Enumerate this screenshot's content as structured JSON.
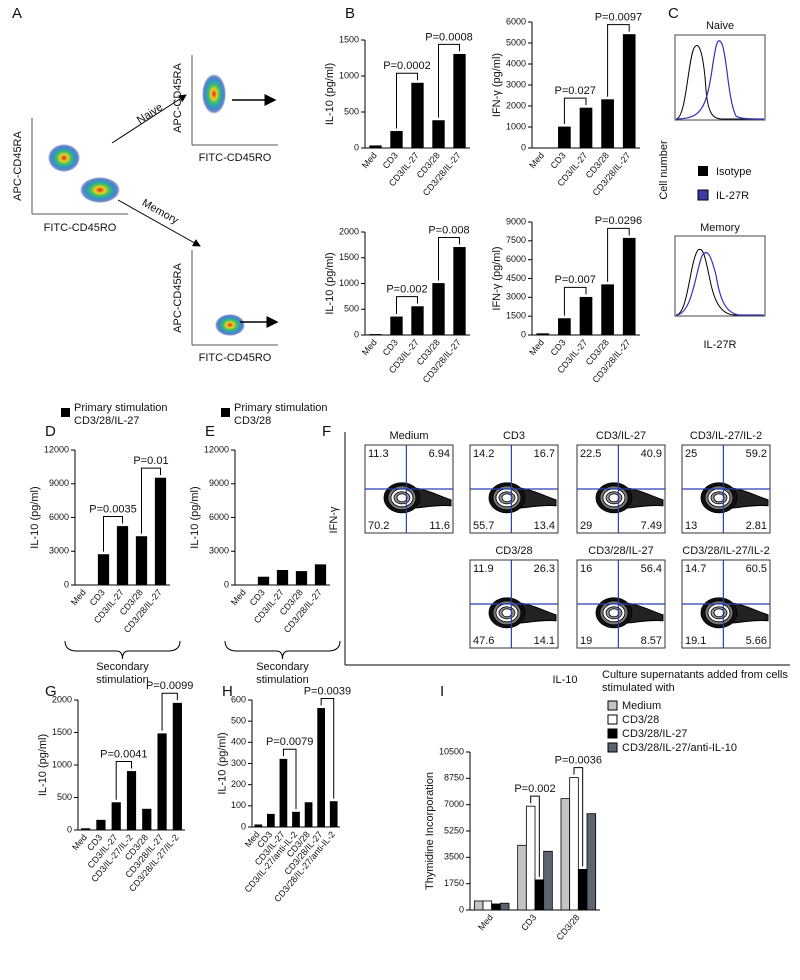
{
  "panel_labels": [
    "A",
    "B",
    "C",
    "D",
    "E",
    "F",
    "G",
    "H",
    "I"
  ],
  "panel_a": {
    "y_axis": "APC-CD45RA",
    "x_axis": "FITC-CD45RO",
    "naive": "Naive",
    "memory": "Memory"
  },
  "panel_c": {
    "y_axis": "Cell number",
    "x_axis": "IL-27R",
    "naive": "Naive",
    "memory": "Memory",
    "legend": [
      "Isotype",
      "IL-27R"
    ]
  },
  "panel_f": {
    "y_axis": "IFN-γ",
    "x_axis": "IL-10",
    "plots": [
      {
        "title": "Medium",
        "quadrants": [
          11.3,
          6.94,
          70.2,
          11.6
        ]
      },
      {
        "title": "CD3",
        "quadrants": [
          14.2,
          16.7,
          55.7,
          13.4
        ]
      },
      {
        "title": "CD3/IL-27",
        "quadrants": [
          22.5,
          40.9,
          29,
          7.49
        ]
      },
      {
        "title": "CD3/IL-27/IL-2",
        "quadrants": [
          25,
          59.2,
          13,
          2.81
        ]
      },
      {
        "title": "CD3/28",
        "quadrants": [
          11.9,
          26.3,
          47.6,
          14.1
        ]
      },
      {
        "title": "CD3/28/IL-27",
        "quadrants": [
          16,
          56.4,
          19,
          8.57
        ]
      },
      {
        "title": "CD3/28/IL-27/IL-2",
        "quadrants": [
          14.7,
          60.5,
          19.1,
          5.66
        ]
      }
    ]
  },
  "chart_data": [
    {
      "type": "bar",
      "y_label": "IL-10 (pg/ml)",
      "categories": [
        "Med",
        "CD3",
        "CD3/IL-27",
        "CD3/28",
        "CD3/28/IL-27"
      ],
      "values": [
        30,
        230,
        900,
        380,
        1300
      ],
      "color": "#000000",
      "ylim": [
        0,
        1500
      ],
      "yticks": [
        0,
        500,
        1000,
        1500
      ],
      "annotations": [
        {
          "text": "P=0.0002",
          "pair": [
            1,
            2
          ]
        },
        {
          "text": "P=0.0008",
          "pair": [
            3,
            4
          ]
        }
      ]
    },
    {
      "type": "bar",
      "y_label": "IFN-γ (pg/ml)",
      "categories": [
        "Med",
        "CD3",
        "CD3/IL-27",
        "CD3/28",
        "CD3/28/IL-27"
      ],
      "values": [
        0,
        1000,
        1900,
        2300,
        5400
      ],
      "color": "#000000",
      "ylim": [
        0,
        6000
      ],
      "yticks": [
        0,
        1000,
        2000,
        3000,
        4000,
        5000,
        6000
      ],
      "annotations": [
        {
          "text": "P=0.027",
          "pair": [
            1,
            2
          ]
        },
        {
          "text": "P=0.0097",
          "pair": [
            3,
            4
          ]
        }
      ]
    },
    {
      "type": "bar",
      "y_label": "IL-10 (pg/ml)",
      "categories": [
        "Med",
        "CD3",
        "CD3/IL-27",
        "CD3/28",
        "CD3/28/IL-27"
      ],
      "values": [
        10,
        350,
        550,
        1000,
        1700
      ],
      "color": "#000000",
      "ylim": [
        0,
        2000
      ],
      "yticks": [
        0,
        500,
        1000,
        1500,
        2000
      ],
      "annotations": [
        {
          "text": "P=0.002",
          "pair": [
            1,
            2
          ]
        },
        {
          "text": "P=0.008",
          "pair": [
            3,
            4
          ]
        }
      ]
    },
    {
      "type": "bar",
      "y_label": "IFN-γ (pg/ml)",
      "categories": [
        "Med",
        "CD3",
        "CD3/IL-27",
        "CD3/28",
        "CD3/28/IL-27"
      ],
      "values": [
        100,
        1300,
        3000,
        4000,
        7700
      ],
      "color": "#000000",
      "ylim": [
        0,
        9000
      ],
      "yticks": [
        0,
        1500,
        3000,
        4500,
        6000,
        7500,
        9000
      ],
      "annotations": [
        {
          "text": "P=0.007",
          "pair": [
            1,
            2
          ]
        },
        {
          "text": "P=0.0296",
          "pair": [
            3,
            4
          ]
        }
      ]
    },
    {
      "type": "bar",
      "y_label": "IL-10 (pg/ml)",
      "categories": [
        "Med",
        "CD3",
        "CD3/IL-27",
        "CD3/28",
        "CD3/28/IL-27"
      ],
      "series": [
        {
          "name": "Primary stimulation CD3/28/IL-27",
          "color": "#000000",
          "values": [
            0,
            2700,
            5200,
            4300,
            9500
          ]
        }
      ],
      "ylim": [
        0,
        12000
      ],
      "yticks": [
        0,
        3000,
        6000,
        9000,
        12000
      ],
      "annotations": [
        {
          "text": "P=0.0035",
          "pair": [
            1,
            2
          ]
        },
        {
          "text": "P=0.01",
          "pair": [
            3,
            4
          ]
        }
      ],
      "group_label": "Secondary stimulation"
    },
    {
      "type": "bar",
      "y_label": "IL-10 (pg/ml)",
      "categories": [
        "Med",
        "CD3",
        "CD3/IL-27",
        "CD3/28",
        "CD3/28/IL-27"
      ],
      "series": [
        {
          "name": "Primary stimulation CD3/28",
          "color": "#000000",
          "values": [
            0,
            700,
            1300,
            1200,
            1800
          ]
        }
      ],
      "ylim": [
        0,
        12000
      ],
      "yticks": [
        0,
        3000,
        6000,
        9000,
        12000
      ],
      "annotations": [],
      "group_label": "Secondary stimulation"
    },
    {
      "type": "bar",
      "y_label": "IL-10  (pg/ml)",
      "categories": [
        "Med",
        "CD3",
        "CD3/IL-27",
        "CD3/IL-27/IL-2",
        "CD3/28",
        "CD3/28/IL-27",
        "CD3/28/IL-27/IL-2"
      ],
      "values": [
        20,
        150,
        420,
        900,
        320,
        1480,
        1950
      ],
      "color": "#000000",
      "ylim": [
        0,
        2000
      ],
      "yticks": [
        0,
        500,
        1000,
        1500,
        2000
      ],
      "annotations": [
        {
          "text": "P=0.0041",
          "pair": [
            2,
            3
          ]
        },
        {
          "text": "P=0.0099",
          "pair": [
            5,
            6
          ]
        }
      ]
    },
    {
      "type": "bar",
      "y_label": "IL-10 (pg/ml)",
      "categories": [
        "Med",
        "CD3",
        "CD3/IL-27",
        "CD3/IL-27/anti-IL-2",
        "CD3/28",
        "CD3/28/IL-27",
        "CD3/28/IL-27/anti-IL-2"
      ],
      "values": [
        10,
        60,
        320,
        70,
        115,
        560,
        120
      ],
      "color": "#000000",
      "ylim": [
        0,
        600
      ],
      "yticks": [
        0,
        100,
        200,
        300,
        400,
        500,
        600
      ],
      "annotations": [
        {
          "text": "P=0.0079",
          "pair": [
            2,
            3
          ]
        },
        {
          "text": "P=0.0039",
          "pair": [
            5,
            6
          ]
        }
      ]
    },
    {
      "type": "grouped_bar",
      "y_label": "Thymidine Incorporation",
      "legend_title": "Culture supernatants added from cells stimulated with",
      "categories": [
        "Med",
        "CD3",
        "CD3/28"
      ],
      "series": [
        {
          "name": "Medium",
          "color": "#c4c4c4",
          "values": [
            600,
            4300,
            7400
          ]
        },
        {
          "name": "CD3/28",
          "color": "#ffffff",
          "values": [
            600,
            6900,
            8800
          ]
        },
        {
          "name": "CD3/28/IL-27",
          "color": "#000000",
          "values": [
            400,
            2000,
            2700
          ]
        },
        {
          "name": "CD3/28/IL-27/anti-IL-10",
          "color": "#5b6470",
          "values": [
            450,
            3900,
            6400
          ]
        }
      ],
      "ylim": [
        0,
        10500
      ],
      "yticks": [
        0,
        1750,
        3500,
        5250,
        7000,
        8750,
        10500
      ],
      "annotations": [
        {
          "text": "P=0.002",
          "category": 1,
          "series_pair": [
            1,
            2
          ]
        },
        {
          "text": "P=0.0036",
          "category": 2,
          "series_pair": [
            1,
            2
          ]
        }
      ]
    }
  ]
}
